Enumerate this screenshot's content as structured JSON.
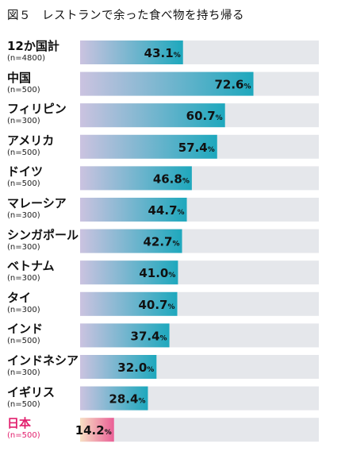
{
  "title": {
    "figure_number": "図５",
    "text": "レストランで余った食べ物を持ち帰る"
  },
  "colors": {
    "track": "#e5e7eb",
    "bar_gradient_start": "#cbc3e0",
    "bar_gradient_end": "#1ea8bd",
    "highlight_gradient_start": "#f7e0c4",
    "highlight_gradient_end": "#ea5f96",
    "highlight_text": "#e2206e"
  },
  "chart_data": {
    "type": "bar",
    "orientation": "horizontal",
    "xlim": [
      0,
      100
    ],
    "unit": "%",
    "categories": [
      "12か国計",
      "中国",
      "フィリピン",
      "アメリカ",
      "ドイツ",
      "マレーシア",
      "シンガポール",
      "ベトナム",
      "タイ",
      "インド",
      "インドネシア",
      "イギリス",
      "日本"
    ],
    "sample_sizes": [
      "(n=4800)",
      "(n=500)",
      "(n=300)",
      "(n=500)",
      "(n=500)",
      "(n=300)",
      "(n=300)",
      "(n=300)",
      "(n=300)",
      "(n=500)",
      "(n=300)",
      "(n=500)",
      "(n=500)"
    ],
    "values": [
      43.1,
      72.6,
      60.7,
      57.4,
      46.8,
      44.7,
      42.7,
      41.0,
      40.7,
      37.4,
      32.0,
      28.4,
      14.2
    ],
    "value_labels": [
      "43.1",
      "72.6",
      "60.7",
      "57.4",
      "46.8",
      "44.7",
      "42.7",
      "41.0",
      "40.7",
      "37.4",
      "32.0",
      "28.4",
      "14.2"
    ],
    "highlighted_category": "日本"
  }
}
